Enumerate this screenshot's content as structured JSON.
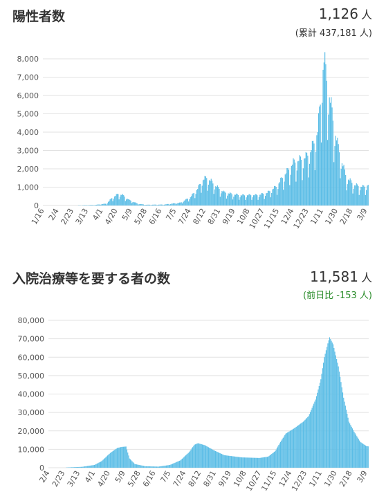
{
  "panels": [
    {
      "title": "陽性者数",
      "value": "1,126",
      "unit": "人",
      "sub_open": "(",
      "sub_label": "累計",
      "sub_value": "437,181",
      "sub_unit": "人",
      "sub_close": ")",
      "sub_color": "#333333"
    },
    {
      "title": "入院治療等を要する者の数",
      "value": "11,581",
      "unit": "人",
      "sub_open": "(",
      "sub_label": "前日比",
      "sub_value": "-153",
      "sub_unit": "人",
      "sub_close": ")",
      "sub_color": "#2a8c2a"
    }
  ],
  "chart_data": [
    {
      "type": "bar",
      "title": "陽性者数",
      "color": "#5bbde6",
      "ylim": [
        0,
        8000
      ],
      "y_ticks": [
        "0",
        "1,000",
        "2,000",
        "3,000",
        "4,000",
        "5,000",
        "6,000",
        "7,000",
        "8,000"
      ],
      "x_ticks": [
        "1/16",
        "2/4",
        "2/23",
        "3/13",
        "4/1",
        "4/20",
        "5/9",
        "5/28",
        "6/16",
        "7/5",
        "7/24",
        "8/12",
        "8/31",
        "9/19",
        "10/8",
        "10/27",
        "11/15",
        "12/4",
        "12/23",
        "1/11",
        "1/30",
        "2/18",
        "3/9"
      ],
      "grid": true,
      "keypoints": [
        [
          0,
          0
        ],
        [
          19,
          2
        ],
        [
          38,
          10
        ],
        [
          57,
          30
        ],
        [
          70,
          100
        ],
        [
          76,
          400
        ],
        [
          83,
          620
        ],
        [
          88,
          560
        ],
        [
          95,
          300
        ],
        [
          105,
          90
        ],
        [
          114,
          40
        ],
        [
          133,
          50
        ],
        [
          152,
          150
        ],
        [
          163,
          450
        ],
        [
          171,
          900
        ],
        [
          176,
          1350
        ],
        [
          181,
          1500
        ],
        [
          186,
          1300
        ],
        [
          191,
          1050
        ],
        [
          200,
          720
        ],
        [
          210,
          600
        ],
        [
          220,
          550
        ],
        [
          229,
          560
        ],
        [
          238,
          560
        ],
        [
          248,
          680
        ],
        [
          259,
          1050
        ],
        [
          265,
          1500
        ],
        [
          272,
          1950
        ],
        [
          277,
          2300
        ],
        [
          284,
          2450
        ],
        [
          291,
          2600
        ],
        [
          296,
          2900
        ],
        [
          301,
          3500
        ],
        [
          304,
          4000
        ],
        [
          307,
          5500
        ],
        [
          309,
          7000
        ],
        [
          311,
          7800
        ],
        [
          314,
          6800
        ],
        [
          318,
          5600
        ],
        [
          322,
          4300
        ],
        [
          326,
          3300
        ],
        [
          331,
          2300
        ],
        [
          336,
          1500
        ],
        [
          345,
          1100
        ],
        [
          354,
          1000
        ],
        [
          358,
          1050
        ],
        [
          360,
          1126
        ]
      ],
      "weekly_dip": true
    },
    {
      "type": "bar",
      "title": "入院治療等を要する者の数",
      "color": "#5bbde6",
      "ylim": [
        0,
        80000
      ],
      "y_ticks": [
        "0",
        "10,000",
        "20,000",
        "30,000",
        "40,000",
        "50,000",
        "60,000",
        "70,000",
        "80,000"
      ],
      "x_ticks": [
        "2/4",
        "2/23",
        "3/13",
        "4/1",
        "4/20",
        "5/9",
        "5/28",
        "6/16",
        "7/5",
        "7/24",
        "8/12",
        "8/31",
        "9/19",
        "10/8",
        "10/27",
        "11/15",
        "12/4",
        "12/23",
        "1/11",
        "1/30",
        "2/18",
        "3/9"
      ],
      "grid": true,
      "keypoints": [
        [
          0,
          0
        ],
        [
          19,
          100
        ],
        [
          38,
          500
        ],
        [
          52,
          1500
        ],
        [
          60,
          3500
        ],
        [
          70,
          8000
        ],
        [
          78,
          10700
        ],
        [
          83,
          11300
        ],
        [
          88,
          11500
        ],
        [
          92,
          5000
        ],
        [
          98,
          2000
        ],
        [
          110,
          800
        ],
        [
          125,
          600
        ],
        [
          138,
          1500
        ],
        [
          150,
          4000
        ],
        [
          160,
          8500
        ],
        [
          166,
          12500
        ],
        [
          170,
          13300
        ],
        [
          178,
          12200
        ],
        [
          188,
          9500
        ],
        [
          200,
          6800
        ],
        [
          220,
          5600
        ],
        [
          240,
          5300
        ],
        [
          250,
          6000
        ],
        [
          258,
          9000
        ],
        [
          264,
          14000
        ],
        [
          270,
          18500
        ],
        [
          280,
          21500
        ],
        [
          290,
          25000
        ],
        [
          296,
          28000
        ],
        [
          304,
          37000
        ],
        [
          310,
          48000
        ],
        [
          314,
          60000
        ],
        [
          318,
          67500
        ],
        [
          320,
          70800
        ],
        [
          324,
          67000
        ],
        [
          330,
          55000
        ],
        [
          336,
          38000
        ],
        [
          342,
          25000
        ],
        [
          348,
          19500
        ],
        [
          355,
          14000
        ],
        [
          362,
          11734
        ],
        [
          364,
          11581
        ]
      ],
      "weekly_dip": false
    }
  ]
}
